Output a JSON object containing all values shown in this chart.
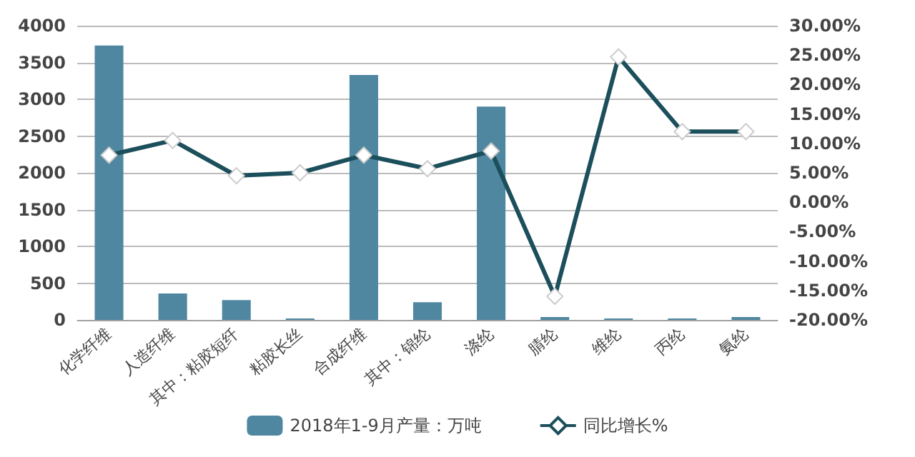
{
  "chart_data": {
    "type": "bar",
    "categories": [
      "化学纤维",
      "人造纤维",
      "其中：粘胶短纤",
      "粘胶长丝",
      "合成纤维",
      "其中：锦纶",
      "涤纶",
      "腈纶",
      "维纶",
      "丙纶",
      "氨纶"
    ],
    "series": [
      {
        "name": "2018年1-9月产量：万吨",
        "color": "#4f87a0",
        "values": [
          3730,
          360,
          270,
          20,
          3330,
          240,
          2900,
          40,
          20,
          20,
          40
        ]
      },
      {
        "name": "同比增长%",
        "type": "line",
        "axis": "y2",
        "color": "#1c4f5c",
        "marker": "diamond",
        "values": [
          8,
          10.5,
          4.5,
          5,
          8,
          5.7,
          8.7,
          -16,
          24.7,
          12,
          12
        ]
      }
    ],
    "ylim": [
      0,
      4000
    ],
    "yticks": [
      0,
      500,
      1000,
      1500,
      2000,
      2500,
      3000,
      3500,
      4000
    ],
    "y2lim": [
      -20,
      30
    ],
    "y2ticks": [
      {
        "value": -20,
        "label": "-20.00%"
      },
      {
        "value": -15,
        "label": "-15.00%"
      },
      {
        "value": -10,
        "label": "-10.00%"
      },
      {
        "value": -5,
        "label": "-5.00%"
      },
      {
        "value": 0,
        "label": "0.00%"
      },
      {
        "value": 5,
        "label": "5.00%"
      },
      {
        "value": 10,
        "label": "10.00%"
      },
      {
        "value": 15,
        "label": "15.00%"
      },
      {
        "value": 20,
        "label": "20.00%"
      },
      {
        "value": 25,
        "label": "25.00%"
      },
      {
        "value": 30,
        "label": "30.00%"
      }
    ],
    "grid": "y",
    "legend": "bottom"
  }
}
